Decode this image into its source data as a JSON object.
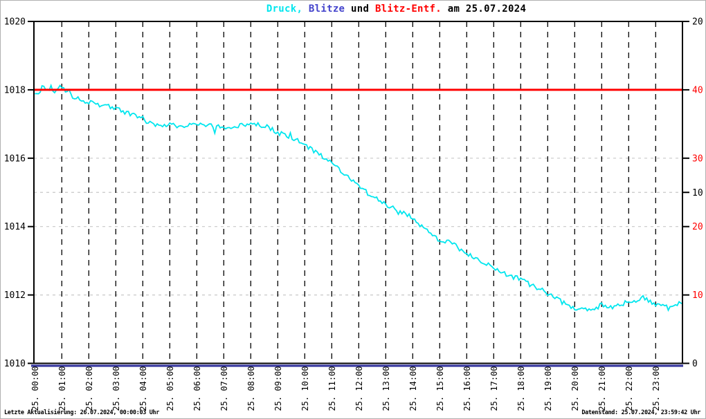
{
  "title": {
    "segments": [
      {
        "key": "druck",
        "text": "Druck,",
        "color": "#00E6EE"
      },
      {
        "key": "blitze",
        "text": " Blitze",
        "color": "#4444CC"
      },
      {
        "key": "und",
        "text": " und ",
        "color": "#000000"
      },
      {
        "key": "blitz-entf",
        "text": "Blitz-Entf.",
        "color": "#FF0000"
      },
      {
        "key": "datum",
        "text": " am 25.07.2024",
        "color": "#000000"
      }
    ]
  },
  "status_bar": {
    "left": "Letzte Aktualisierung: 26.07.2024, 00:00:03 Uhr",
    "right": "Datenstand: 25.07.2024, 23:59:42 Uhr"
  },
  "chart_data": {
    "type": "line",
    "title": "Druck, Blitze und Blitz-Entf. am 25.07.2024",
    "grid": {
      "vertical_hours": "every hour 01-23, black dashed",
      "horizontal": "at right-axis ticks, light gray dashed"
    },
    "x_axis": {
      "unit": "time",
      "hours": [
        0,
        1,
        2,
        3,
        4,
        5,
        6,
        7,
        8,
        9,
        10,
        11,
        12,
        13,
        14,
        15,
        16,
        17,
        18,
        19,
        20,
        21,
        22,
        23
      ],
      "labels": [
        "25. 00:00",
        "25. 01:00",
        "25. 02:00",
        "25. 03:00",
        "25. 04:00",
        "25. 05:00",
        "25. 06:00",
        "25. 07:00",
        "25. 08:00",
        "25. 09:00",
        "25. 10:00",
        "25. 11:00",
        "25. 12:00",
        "25. 13:00",
        "25. 14:00",
        "25. 15:00",
        "25. 16:00",
        "25. 17:00",
        "25. 18:00",
        "25. 19:00",
        "25. 20:00",
        "25. 21:00",
        "25. 22:00",
        "25. 23:00"
      ]
    },
    "left_axis": {
      "series": "Druck (hPa)",
      "range": [
        1010,
        1020
      ],
      "ticks": [
        1020,
        1018,
        1016,
        1014,
        1012,
        1010
      ],
      "color": "#000000"
    },
    "right_axis_black": {
      "series": "Blitze",
      "range": [
        0,
        20
      ],
      "ticks": [
        20,
        10,
        0
      ],
      "color": "#000000"
    },
    "right_axis_red": {
      "series": "Blitz-Entf. (km)",
      "range": [
        0,
        50
      ],
      "ticks": [
        40,
        30,
        20,
        10
      ],
      "color": "#FF0000"
    },
    "series": [
      {
        "name": "Druck",
        "axis": "left",
        "color": "#00E6EE",
        "x_hours": [
          0,
          0.5,
          1,
          1.5,
          2,
          2.5,
          3,
          3.5,
          4,
          4.5,
          5,
          5.5,
          6,
          6.5,
          7,
          7.5,
          8,
          8.5,
          9,
          9.5,
          10,
          10.5,
          11,
          11.5,
          12,
          12.5,
          13,
          13.5,
          14,
          14.5,
          15,
          15.5,
          16,
          16.5,
          17,
          17.5,
          18,
          18.5,
          19,
          19.5,
          20,
          20.5,
          21,
          21.5,
          22,
          22.5,
          23,
          23.5,
          24
        ],
        "values": [
          1018.0,
          1018.1,
          1018.0,
          1017.75,
          1017.65,
          1017.55,
          1017.45,
          1017.3,
          1017.15,
          1016.95,
          1017.0,
          1016.9,
          1017.0,
          1016.95,
          1016.9,
          1016.95,
          1017.0,
          1016.95,
          1016.75,
          1016.6,
          1016.4,
          1016.15,
          1015.85,
          1015.55,
          1015.15,
          1014.9,
          1014.65,
          1014.45,
          1014.25,
          1013.9,
          1013.6,
          1013.5,
          1013.2,
          1013.0,
          1012.8,
          1012.6,
          1012.45,
          1012.25,
          1012.05,
          1011.8,
          1011.6,
          1011.55,
          1011.7,
          1011.65,
          1011.75,
          1011.95,
          1011.7,
          1011.7,
          1011.75
        ],
        "noise_hpa": 0.07
      },
      {
        "name": "Blitz-Entf.",
        "axis": "right_red",
        "color": "#FF0000",
        "constant_value": 40
      },
      {
        "name": "Blitze",
        "axis": "right_black",
        "color": "#3A3AA0",
        "constant_value": 0
      }
    ]
  }
}
